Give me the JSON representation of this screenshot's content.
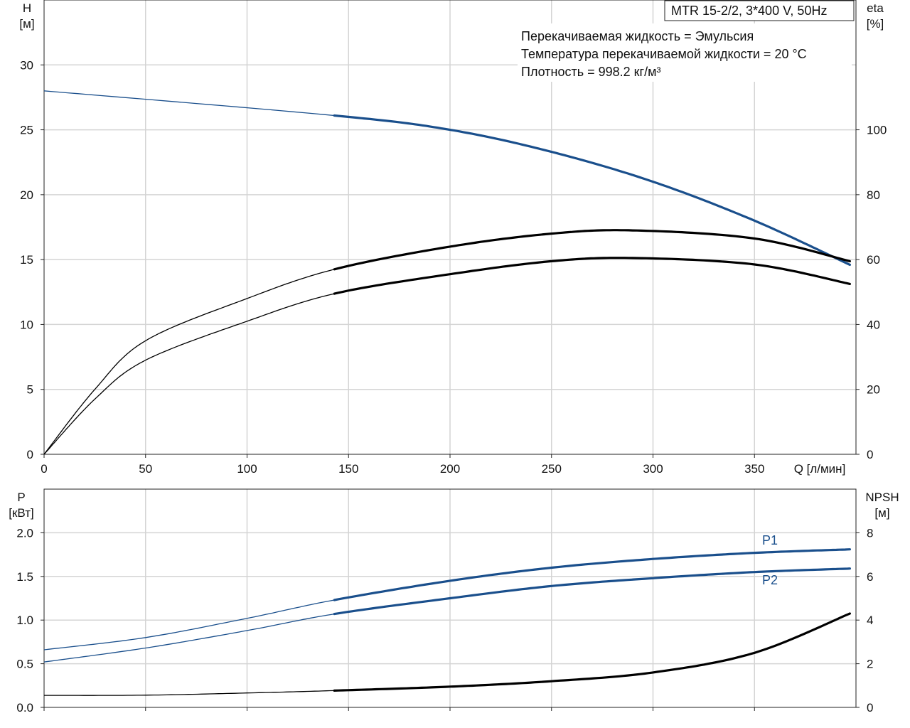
{
  "title_box": "MTR 15-2/2, 3*400 V, 50Hz",
  "info_lines": [
    "Перекачиваемая жидкость = Эмульсия",
    "Температура перекачиваемой жидкости = 20 °C",
    "Плотность = 998.2 кг/м³"
  ],
  "colors": {
    "blue": "#1a4f8c",
    "black": "#000000",
    "grid": "#d4d4d4"
  },
  "chart_data": [
    {
      "type": "line",
      "x_label": "Q [л/мин]",
      "y_left_label": [
        "H",
        "[м]"
      ],
      "y_right_label": [
        "eta",
        "[%]"
      ],
      "xlim": [
        0,
        400
      ],
      "ylim_left": [
        0,
        35
      ],
      "ylim_right": [
        0,
        140
      ],
      "x_ticks": [
        "0",
        "50",
        "100",
        "150",
        "200",
        "250",
        "300",
        "350"
      ],
      "y_left_ticks": [
        "0",
        "5",
        "10",
        "15",
        "20",
        "25",
        "30"
      ],
      "y_right_ticks": [
        "0",
        "20",
        "40",
        "60",
        "80",
        "100"
      ],
      "grid": true,
      "operating_range_start": 143,
      "series": [
        {
          "axis": "left",
          "color": "#1a4f8c",
          "x": [
            0,
            143,
            200,
            250,
            300,
            350,
            397
          ],
          "values": [
            28.0,
            26.1,
            25.0,
            23.3,
            21.0,
            18.0,
            14.6
          ]
        },
        {
          "axis": "right",
          "color": "#000000",
          "x": [
            0,
            25,
            50,
            100,
            143,
            200,
            250,
            290,
            350,
            397
          ],
          "values": [
            0,
            20,
            35,
            48,
            57,
            64,
            68,
            69,
            66.5,
            59.5
          ]
        },
        {
          "axis": "right",
          "color": "#000000",
          "x": [
            0,
            25,
            50,
            100,
            143,
            200,
            250,
            290,
            350,
            397
          ],
          "values": [
            0,
            17,
            29,
            41,
            49.5,
            55.5,
            59.5,
            60.5,
            58.5,
            52.5
          ]
        }
      ]
    },
    {
      "type": "line",
      "y_left_label": [
        "P",
        "[кВт]"
      ],
      "y_right_label": [
        "NPSH",
        "[м]"
      ],
      "xlim": [
        0,
        400
      ],
      "ylim_left": [
        0,
        2.5
      ],
      "ylim_right": [
        0,
        10
      ],
      "y_left_ticks": [
        "0.0",
        "0.5",
        "1.0",
        "1.5",
        "2.0"
      ],
      "y_right_ticks": [
        "0",
        "2",
        "4",
        "6",
        "8"
      ],
      "grid": true,
      "operating_range_start": 143,
      "series": [
        {
          "name": "P1",
          "axis": "left",
          "color": "#1a4f8c",
          "x": [
            0,
            50,
            100,
            143,
            200,
            250,
            300,
            350,
            397
          ],
          "values": [
            0.66,
            0.8,
            1.02,
            1.23,
            1.45,
            1.6,
            1.7,
            1.77,
            1.81
          ]
        },
        {
          "name": "P2",
          "axis": "left",
          "color": "#1a4f8c",
          "x": [
            0,
            50,
            100,
            143,
            200,
            250,
            300,
            350,
            397
          ],
          "values": [
            0.52,
            0.68,
            0.88,
            1.07,
            1.25,
            1.39,
            1.48,
            1.55,
            1.59
          ]
        },
        {
          "axis": "right",
          "color": "#000000",
          "x": [
            0,
            50,
            100,
            143,
            200,
            250,
            300,
            350,
            397
          ],
          "values": [
            0.55,
            0.56,
            0.66,
            0.77,
            0.95,
            1.2,
            1.6,
            2.5,
            4.3
          ]
        }
      ]
    }
  ]
}
